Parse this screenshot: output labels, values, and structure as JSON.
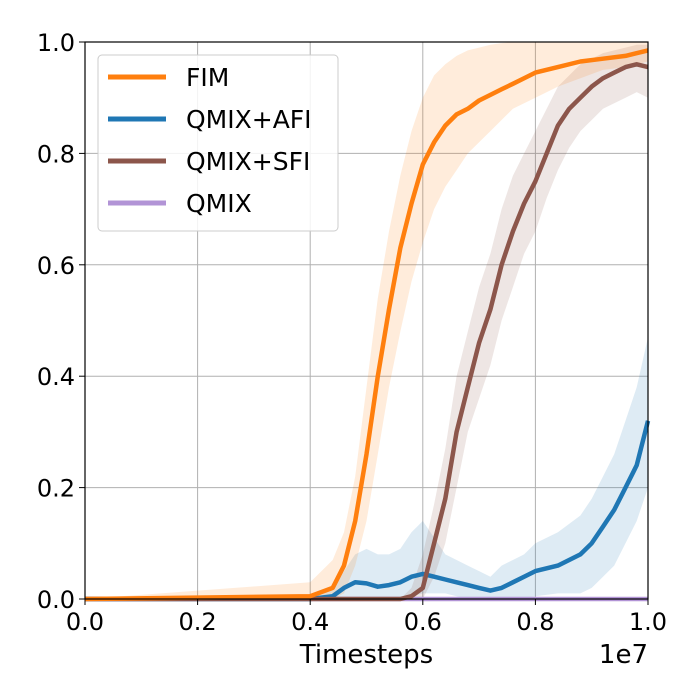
{
  "chart_data": {
    "type": "line",
    "title": "",
    "xlabel": "Timesteps",
    "ylabel": "",
    "x_offset_label": "1e7",
    "xlim": [
      0.0,
      1.0
    ],
    "ylim": [
      0.0,
      1.0
    ],
    "grid": true,
    "legend_position": "top-left",
    "x_ticks": [
      "0.0",
      "0.2",
      "0.4",
      "0.6",
      "0.8",
      "1.0"
    ],
    "y_ticks": [
      "0.0",
      "0.2",
      "0.4",
      "0.6",
      "0.8",
      "1.0"
    ],
    "series": [
      {
        "name": "FIM",
        "color": "#ff7f0e",
        "x": [
          0.0,
          0.4,
          0.44,
          0.46,
          0.48,
          0.5,
          0.52,
          0.54,
          0.56,
          0.58,
          0.6,
          0.62,
          0.64,
          0.66,
          0.68,
          0.7,
          0.72,
          0.74,
          0.76,
          0.78,
          0.8,
          0.84,
          0.88,
          0.92,
          0.96,
          1.0
        ],
        "y": [
          0.0,
          0.005,
          0.02,
          0.06,
          0.14,
          0.26,
          0.4,
          0.52,
          0.63,
          0.71,
          0.78,
          0.82,
          0.85,
          0.87,
          0.88,
          0.895,
          0.905,
          0.915,
          0.925,
          0.935,
          0.945,
          0.955,
          0.965,
          0.97,
          0.975,
          0.985
        ],
        "lower": [
          0.0,
          0.0,
          0.0,
          0.01,
          0.06,
          0.14,
          0.26,
          0.38,
          0.48,
          0.57,
          0.64,
          0.7,
          0.74,
          0.77,
          0.8,
          0.82,
          0.84,
          0.86,
          0.88,
          0.89,
          0.9,
          0.92,
          0.935,
          0.95,
          0.955,
          0.965
        ],
        "upper": [
          0.0,
          0.03,
          0.07,
          0.12,
          0.22,
          0.38,
          0.54,
          0.66,
          0.76,
          0.84,
          0.9,
          0.94,
          0.96,
          0.975,
          0.985,
          0.99,
          0.995,
          0.998,
          1.0,
          1.0,
          1.0,
          1.0,
          1.0,
          1.0,
          1.0,
          1.0
        ]
      },
      {
        "name": "QMIX+AFI",
        "color": "#1f77b4",
        "x": [
          0.0,
          0.4,
          0.44,
          0.46,
          0.48,
          0.5,
          0.52,
          0.54,
          0.56,
          0.58,
          0.6,
          0.62,
          0.64,
          0.66,
          0.68,
          0.7,
          0.72,
          0.74,
          0.76,
          0.78,
          0.8,
          0.84,
          0.88,
          0.9,
          0.92,
          0.94,
          0.96,
          0.98,
          1.0
        ],
        "y": [
          0.0,
          0.0,
          0.005,
          0.02,
          0.03,
          0.028,
          0.022,
          0.025,
          0.03,
          0.04,
          0.045,
          0.04,
          0.035,
          0.03,
          0.025,
          0.02,
          0.015,
          0.02,
          0.03,
          0.04,
          0.05,
          0.06,
          0.08,
          0.1,
          0.13,
          0.16,
          0.2,
          0.24,
          0.32
        ],
        "lower": [
          0.0,
          0.0,
          0.0,
          0.0,
          0.0,
          0.0,
          0.0,
          0.0,
          0.0,
          0.005,
          0.01,
          0.01,
          0.01,
          0.005,
          0.0,
          0.0,
          0.0,
          0.0,
          0.0,
          0.0,
          0.005,
          0.01,
          0.01,
          0.02,
          0.04,
          0.06,
          0.1,
          0.14,
          0.2
        ],
        "upper": [
          0.0,
          0.0,
          0.02,
          0.05,
          0.08,
          0.09,
          0.08,
          0.08,
          0.09,
          0.12,
          0.14,
          0.11,
          0.08,
          0.07,
          0.06,
          0.05,
          0.04,
          0.06,
          0.07,
          0.08,
          0.1,
          0.12,
          0.15,
          0.18,
          0.22,
          0.26,
          0.32,
          0.38,
          0.47
        ]
      },
      {
        "name": "QMIX+SFI",
        "color": "#8c564b",
        "x": [
          0.0,
          0.56,
          0.58,
          0.6,
          0.62,
          0.64,
          0.66,
          0.68,
          0.7,
          0.72,
          0.74,
          0.76,
          0.78,
          0.8,
          0.82,
          0.84,
          0.86,
          0.88,
          0.9,
          0.92,
          0.94,
          0.96,
          0.98,
          1.0
        ],
        "y": [
          0.0,
          0.0,
          0.005,
          0.02,
          0.1,
          0.18,
          0.3,
          0.38,
          0.46,
          0.52,
          0.6,
          0.66,
          0.71,
          0.75,
          0.8,
          0.85,
          0.88,
          0.9,
          0.92,
          0.935,
          0.945,
          0.955,
          0.96,
          0.955
        ],
        "lower": [
          0.0,
          0.0,
          0.0,
          0.0,
          0.04,
          0.1,
          0.2,
          0.3,
          0.36,
          0.42,
          0.5,
          0.56,
          0.62,
          0.66,
          0.72,
          0.77,
          0.81,
          0.84,
          0.86,
          0.88,
          0.89,
          0.9,
          0.91,
          0.9
        ],
        "upper": [
          0.0,
          0.0,
          0.02,
          0.08,
          0.17,
          0.27,
          0.4,
          0.48,
          0.56,
          0.62,
          0.7,
          0.76,
          0.8,
          0.84,
          0.88,
          0.92,
          0.94,
          0.96,
          0.97,
          0.98,
          0.985,
          0.99,
          0.995,
          0.995
        ]
      },
      {
        "name": "QMIX",
        "color": "#b294d6",
        "x": [
          0.0,
          1.0
        ],
        "y": [
          0.0,
          0.0
        ],
        "lower": [
          0.0,
          0.0
        ],
        "upper": [
          0.0,
          0.0
        ]
      }
    ]
  }
}
